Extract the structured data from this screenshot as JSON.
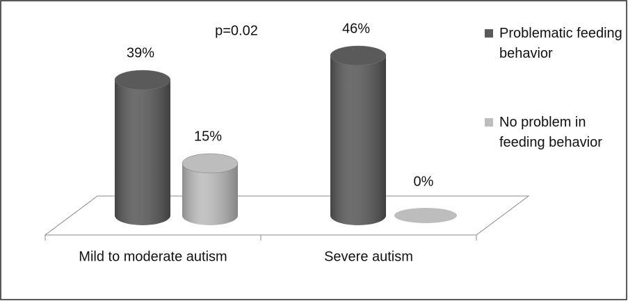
{
  "chart_data": {
    "type": "bar3d",
    "annotation": "p=0.02",
    "categories": [
      "Mild to moderate autism",
      "Severe autism"
    ],
    "series": [
      {
        "name": "Problematic feeding behavior",
        "color": "#5a5a5a",
        "values": [
          39,
          46
        ],
        "value_labels": [
          "39%",
          "46%"
        ]
      },
      {
        "name": "No problem in feeding behavior",
        "color": "#bdbdbd",
        "values": [
          15,
          0
        ],
        "value_labels": [
          "15%",
          "0%"
        ]
      }
    ],
    "legend": "right"
  }
}
